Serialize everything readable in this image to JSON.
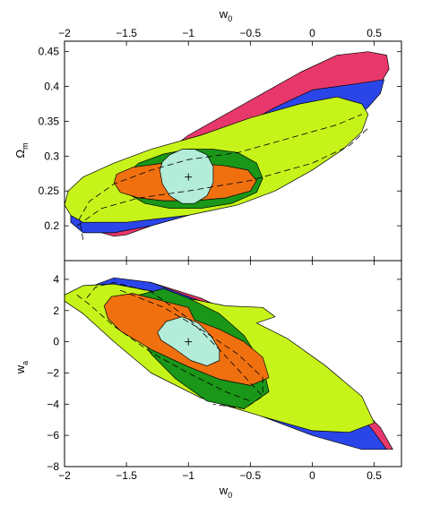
{
  "chart_data": [
    {
      "type": "contour",
      "panel": "top",
      "xlabel": "w",
      "xlabel_sub": "0",
      "ylabel": "Ω",
      "ylabel_sub": "m",
      "xlim": [
        -2,
        0.72
      ],
      "ylim": [
        0.15,
        0.465
      ],
      "xticks": [
        -2,
        -1.5,
        -1,
        -0.5,
        0,
        0.5
      ],
      "xtick_labels": [
        "−2",
        "−1.5",
        "−1",
        "−0.5",
        "0",
        "0.5"
      ],
      "yticks": [
        0.2,
        0.25,
        0.3,
        0.35,
        0.4,
        0.45
      ],
      "ytick_labels": [
        "0.2",
        "0.25",
        "0.3",
        "0.35",
        "0.4",
        "0.45"
      ],
      "fiducial": [
        -1,
        0.27
      ],
      "regions": [
        {
          "color": "#e8386b",
          "points": [
            [
              -1.7,
              0.19
            ],
            [
              -1.6,
              0.185
            ],
            [
              -1.5,
              0.187
            ],
            [
              -1.3,
              0.2
            ],
            [
              -1,
              0.215
            ],
            [
              -0.5,
              0.24
            ],
            [
              0,
              0.3
            ],
            [
              0.3,
              0.35
            ],
            [
              0.5,
              0.39
            ],
            [
              0.62,
              0.425
            ],
            [
              0.6,
              0.445
            ],
            [
              0.45,
              0.45
            ],
            [
              0.2,
              0.445
            ],
            [
              -0.1,
              0.42
            ],
            [
              -0.4,
              0.39
            ],
            [
              -0.7,
              0.36
            ],
            [
              -1,
              0.33
            ],
            [
              -1.3,
              0.29
            ],
            [
              -1.55,
              0.25
            ],
            [
              -1.72,
              0.21
            ]
          ]
        },
        {
          "color": "#2b46e8",
          "points": [
            [
              -1.95,
              0.205
            ],
            [
              -1.85,
              0.19
            ],
            [
              -1.6,
              0.19
            ],
            [
              -1.3,
              0.2
            ],
            [
              -1,
              0.215
            ],
            [
              -0.6,
              0.24
            ],
            [
              -0.2,
              0.28
            ],
            [
              0.2,
              0.33
            ],
            [
              0.45,
              0.37
            ],
            [
              0.55,
              0.39
            ],
            [
              0.58,
              0.41
            ],
            [
              0.4,
              0.405
            ],
            [
              0,
              0.395
            ],
            [
              -0.3,
              0.37
            ],
            [
              -0.7,
              0.33
            ],
            [
              -1.1,
              0.295
            ],
            [
              -1.5,
              0.27
            ],
            [
              -1.8,
              0.24
            ],
            [
              -1.95,
              0.22
            ]
          ]
        },
        {
          "color": "#c6f41a",
          "points": [
            [
              -2,
              0.23
            ],
            [
              -1.95,
              0.215
            ],
            [
              -1.85,
              0.205
            ],
            [
              -1.5,
              0.205
            ],
            [
              -1,
              0.215
            ],
            [
              -0.6,
              0.23
            ],
            [
              -0.3,
              0.25
            ],
            [
              0,
              0.28
            ],
            [
              0.25,
              0.31
            ],
            [
              0.4,
              0.335
            ],
            [
              0.45,
              0.36
            ],
            [
              0.4,
              0.375
            ],
            [
              0.2,
              0.385
            ],
            [
              -0.1,
              0.375
            ],
            [
              -0.5,
              0.355
            ],
            [
              -0.9,
              0.33
            ],
            [
              -1.3,
              0.31
            ],
            [
              -1.6,
              0.29
            ],
            [
              -1.85,
              0.27
            ],
            [
              -1.97,
              0.25
            ]
          ]
        },
        {
          "color": "#1a9618",
          "points": [
            [
              -1.52,
              0.26
            ],
            [
              -1.48,
              0.245
            ],
            [
              -1.35,
              0.232
            ],
            [
              -1.15,
              0.225
            ],
            [
              -0.9,
              0.225
            ],
            [
              -0.65,
              0.232
            ],
            [
              -0.45,
              0.248
            ],
            [
              -0.4,
              0.268
            ],
            [
              -0.45,
              0.29
            ],
            [
              -0.6,
              0.305
            ],
            [
              -0.8,
              0.31
            ],
            [
              -1,
              0.31
            ],
            [
              -1.2,
              0.303
            ],
            [
              -1.4,
              0.29
            ],
            [
              -1.5,
              0.275
            ]
          ]
        },
        {
          "color": "#f07010",
          "points": [
            [
              -1.6,
              0.262
            ],
            [
              -1.55,
              0.248
            ],
            [
              -1.4,
              0.24
            ],
            [
              -1.2,
              0.236
            ],
            [
              -0.95,
              0.236
            ],
            [
              -0.7,
              0.24
            ],
            [
              -0.5,
              0.25
            ],
            [
              -0.45,
              0.265
            ],
            [
              -0.52,
              0.28
            ],
            [
              -0.7,
              0.286
            ],
            [
              -0.95,
              0.29
            ],
            [
              -1.2,
              0.29
            ],
            [
              -1.45,
              0.284
            ],
            [
              -1.58,
              0.274
            ]
          ]
        },
        {
          "color": "#b3ecd8",
          "points": [
            [
              -1.23,
              0.28
            ],
            [
              -1.21,
              0.26
            ],
            [
              -1.15,
              0.243
            ],
            [
              -1.05,
              0.232
            ],
            [
              -0.95,
              0.232
            ],
            [
              -0.85,
              0.243
            ],
            [
              -0.8,
              0.262
            ],
            [
              -0.8,
              0.285
            ],
            [
              -0.85,
              0.302
            ],
            [
              -0.95,
              0.31
            ],
            [
              -1.05,
              0.31
            ],
            [
              -1.15,
              0.302
            ],
            [
              -1.21,
              0.292
            ]
          ]
        }
      ],
      "dashed_curves": [
        [
          [
            -1.85,
            0.18
          ],
          [
            -1.88,
            0.21
          ],
          [
            -1.8,
            0.235
          ],
          [
            -1.6,
            0.26
          ],
          [
            -1.3,
            0.28
          ],
          [
            -1,
            0.295
          ],
          [
            -0.6,
            0.305
          ],
          [
            -0.2,
            0.325
          ],
          [
            0.2,
            0.345
          ],
          [
            0.4,
            0.36
          ]
        ],
        [
          [
            -1.9,
            0.2
          ],
          [
            -1.7,
            0.225
          ],
          [
            -1.4,
            0.24
          ],
          [
            -1,
            0.25
          ],
          [
            -0.5,
            0.265
          ],
          [
            0,
            0.29
          ],
          [
            0.3,
            0.315
          ],
          [
            0.45,
            0.34
          ]
        ]
      ]
    },
    {
      "type": "contour",
      "panel": "bottom",
      "xlabel": "w",
      "xlabel_sub": "0",
      "ylabel": "w",
      "ylabel_sub": "a",
      "xlim": [
        -2,
        0.72
      ],
      "ylim": [
        -8,
        5.2
      ],
      "xticks": [
        -2,
        -1.5,
        -1,
        -0.5,
        0,
        0.5
      ],
      "xtick_labels": [
        "−2",
        "−1.5",
        "−1",
        "−0.5",
        "0",
        "0.5"
      ],
      "yticks": [
        -8,
        -6,
        -4,
        -2,
        0,
        2,
        4
      ],
      "ytick_labels": [
        "−8",
        "−6",
        "−4",
        "−2",
        "0",
        "2",
        "4"
      ],
      "fiducial": [
        -1,
        0
      ],
      "regions": [
        {
          "color": "#e8386b",
          "points": [
            [
              -1.6,
              4
            ],
            [
              -1.3,
              3.8
            ],
            [
              -0.9,
              2.8
            ],
            [
              -0.5,
              1.3
            ],
            [
              -0.1,
              -1
            ],
            [
              0.3,
              -3.5
            ],
            [
              0.55,
              -5.5
            ],
            [
              0.65,
              -6.9
            ],
            [
              0.45,
              -6.8
            ],
            [
              0.1,
              -6
            ],
            [
              -0.3,
              -4.8
            ],
            [
              -0.8,
              -3
            ],
            [
              -1.2,
              -1.2
            ],
            [
              -1.5,
              0.8
            ],
            [
              -1.65,
              2.8
            ]
          ]
        },
        {
          "color": "#2b46e8",
          "points": [
            [
              -1.8,
              3.5
            ],
            [
              -1.6,
              4.1
            ],
            [
              -1.3,
              3.8
            ],
            [
              -0.9,
              2.6
            ],
            [
              -0.5,
              1
            ],
            [
              -0.1,
              -1.3
            ],
            [
              0.3,
              -3.8
            ],
            [
              0.5,
              -5.8
            ],
            [
              0.6,
              -6.9
            ],
            [
              0.4,
              -6.9
            ],
            [
              0,
              -6
            ],
            [
              -0.5,
              -4.5
            ],
            [
              -1,
              -3
            ],
            [
              -1.4,
              -1.2
            ],
            [
              -1.7,
              1.5
            ]
          ]
        },
        {
          "color": "#c6f41a",
          "points": [
            [
              -2,
              3
            ],
            [
              -1.85,
              3.6
            ],
            [
              -1.6,
              3.7
            ],
            [
              -1.2,
              3.1
            ],
            [
              -0.7,
              2.3
            ],
            [
              -0.4,
              2.2
            ],
            [
              -0.3,
              1.6
            ],
            [
              -0.45,
              1.2
            ],
            [
              -0.2,
              0.2
            ],
            [
              0.1,
              -1.5
            ],
            [
              0.4,
              -3.5
            ],
            [
              0.5,
              -5.2
            ],
            [
              0.3,
              -5.8
            ],
            [
              0,
              -5.7
            ],
            [
              -0.4,
              -4.8
            ],
            [
              -0.9,
              -3.6
            ],
            [
              -1.3,
              -2
            ],
            [
              -1.6,
              0
            ],
            [
              -1.85,
              1.8
            ],
            [
              -2,
              2.6
            ]
          ]
        },
        {
          "color": "#1a9618",
          "points": [
            [
              -1.42,
              2.3
            ],
            [
              -1.4,
              3
            ],
            [
              -1.2,
              3.4
            ],
            [
              -1,
              2.8
            ],
            [
              -0.75,
              1.8
            ],
            [
              -0.55,
              0.4
            ],
            [
              -0.4,
              -1.5
            ],
            [
              -0.35,
              -3.2
            ],
            [
              -0.55,
              -4.3
            ],
            [
              -0.85,
              -3.8
            ],
            [
              -1.1,
              -2.4
            ],
            [
              -1.3,
              -0.8
            ],
            [
              -1.42,
              0.8
            ]
          ]
        },
        {
          "color": "#f07010",
          "points": [
            [
              -1.68,
              2.3
            ],
            [
              -1.62,
              2.9
            ],
            [
              -1.45,
              3.1
            ],
            [
              -1.2,
              2.6
            ],
            [
              -1,
              2.2
            ],
            [
              -0.95,
              1.4
            ],
            [
              -0.75,
              0.8
            ],
            [
              -0.55,
              0
            ],
            [
              -0.4,
              -1
            ],
            [
              -0.35,
              -2.3
            ],
            [
              -0.5,
              -2.8
            ],
            [
              -0.75,
              -2.4
            ],
            [
              -1,
              -1.6
            ],
            [
              -1.3,
              -0.5
            ],
            [
              -1.55,
              0.7
            ],
            [
              -1.65,
              1.5
            ]
          ]
        },
        {
          "color": "#b3ecd8",
          "points": [
            [
              -1.25,
              0.6
            ],
            [
              -1.18,
              1.3
            ],
            [
              -1.05,
              1.6
            ],
            [
              -0.92,
              1.2
            ],
            [
              -0.82,
              0.4
            ],
            [
              -0.75,
              -0.5
            ],
            [
              -0.75,
              -1.2
            ],
            [
              -0.85,
              -1.55
            ],
            [
              -0.98,
              -1.2
            ],
            [
              -1.12,
              -0.4
            ],
            [
              -1.22,
              0.1
            ]
          ]
        }
      ],
      "dashed_curves": [
        [
          [
            -1.82,
            2.8
          ],
          [
            -1.75,
            3.5
          ],
          [
            -1.6,
            3.8
          ],
          [
            -1.3,
            3.2
          ],
          [
            -1,
            1.5
          ],
          [
            -0.75,
            -0.5
          ],
          [
            -0.55,
            -2.2
          ],
          [
            -0.4,
            -3.5
          ],
          [
            -0.55,
            -4.3
          ],
          [
            -0.8,
            -4
          ]
        ],
        [
          [
            -1.9,
            3
          ],
          [
            -1.8,
            2.4
          ],
          [
            -1.6,
            1
          ],
          [
            -1.3,
            -0.7
          ],
          [
            -1,
            -2
          ],
          [
            -0.7,
            -3.2
          ],
          [
            -0.5,
            -3.8
          ]
        ],
        [
          [
            -1.55,
            3.3
          ],
          [
            -1.2,
            2.2
          ],
          [
            -0.9,
            0.8
          ],
          [
            -0.6,
            -0.8
          ],
          [
            -0.4,
            -2.3
          ],
          [
            -0.4,
            -3.4
          ]
        ]
      ]
    }
  ]
}
